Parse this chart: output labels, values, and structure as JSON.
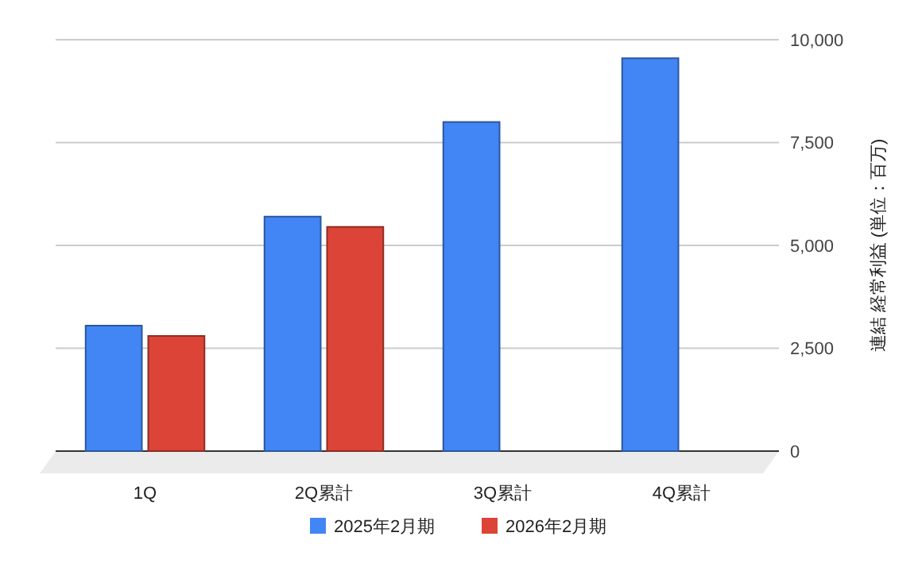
{
  "chart_data": {
    "type": "bar",
    "ylabel": "連結 経常利益 (単位：百万)",
    "categories": [
      "1Q",
      "2Q累計",
      "3Q累計",
      "4Q累計"
    ],
    "series": [
      {
        "name": "2025年2月期",
        "color": "#4285f4",
        "values": [
          3050,
          5700,
          8000,
          9550
        ]
      },
      {
        "name": "2026年2月期",
        "color": "#db4437",
        "values": [
          2800,
          5450,
          null,
          null
        ]
      }
    ],
    "ylim": [
      0,
      10000
    ],
    "yticks": [
      {
        "value": 0,
        "label": "0"
      },
      {
        "value": 2500,
        "label": "2,500"
      },
      {
        "value": 5000,
        "label": "5,000"
      },
      {
        "value": 7500,
        "label": "7,500"
      },
      {
        "value": 10000,
        "label": "10,000"
      }
    ],
    "grid": true,
    "legend": "bottom"
  }
}
